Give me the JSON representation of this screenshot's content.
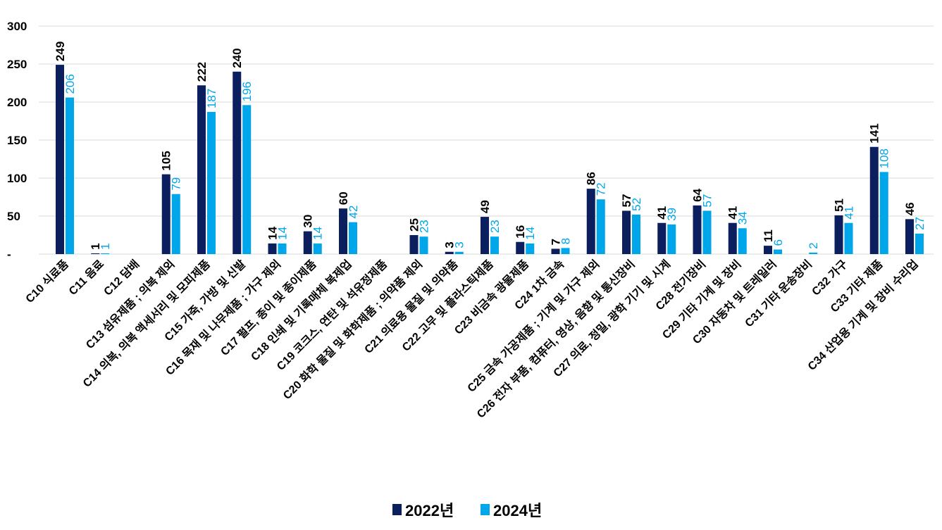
{
  "chart_data": {
    "type": "bar",
    "title": "",
    "xlabel": "",
    "ylabel": "",
    "ylim": [
      0,
      300
    ],
    "yticks": [
      0,
      50,
      100,
      150,
      200,
      250,
      300
    ],
    "ytick_labels": [
      "-",
      "50",
      "100",
      "150",
      "200",
      "250",
      "300"
    ],
    "grid": true,
    "legend_position": "bottom-center",
    "categories": [
      "C10 식료품",
      "C11 음료",
      "C12 담배",
      "C13 섬유제품 ; 의복 제외",
      "C14 의복, 의복 액세서리 및 모피제품",
      "C15 가죽, 가방 및 신발",
      "C16 목재 및 나무제품 ; 가구 제외",
      "C17 펄프, 종이 및 종이제품",
      "C18 인쇄 및 기록매체 복제업",
      "C19 코크스, 연탄 및 석유정제품",
      "C20 화학 물질 및 화학제품 ; 의약품 제외",
      "C21 의료용 물질 및 의약품",
      "C22 고무 및 플라스틱제품",
      "C23 비금속 광물제품",
      "C24 1차 금속",
      "C25 금속 가공제품 ; 기계 및 가구 제외",
      "C26 전자 부품, 컴퓨터, 영상, 음향 및 통신장비",
      "C27 의료, 정밀, 광학 기기 및 시계",
      "C28 전기장비",
      "C29 기타 기계 및 장비",
      "C30 자동차 및 트레일러",
      "C31 기타 운송장비",
      "C32 가구",
      "C33 기타 제품",
      "C34 산업용 기계 및 장비 수리업"
    ],
    "series": [
      {
        "name": "2022년",
        "color": "#0b1f5e",
        "values": [
          249,
          1,
          null,
          105,
          222,
          240,
          14,
          30,
          60,
          null,
          25,
          3,
          49,
          16,
          7,
          86,
          57,
          41,
          64,
          41,
          11,
          null,
          51,
          141,
          46
        ]
      },
      {
        "name": "2024년",
        "color": "#00a6ea",
        "values": [
          206,
          1,
          null,
          79,
          187,
          196,
          14,
          14,
          42,
          null,
          23,
          3,
          23,
          14,
          8,
          72,
          52,
          39,
          57,
          34,
          6,
          2,
          41,
          108,
          27
        ]
      }
    ]
  }
}
